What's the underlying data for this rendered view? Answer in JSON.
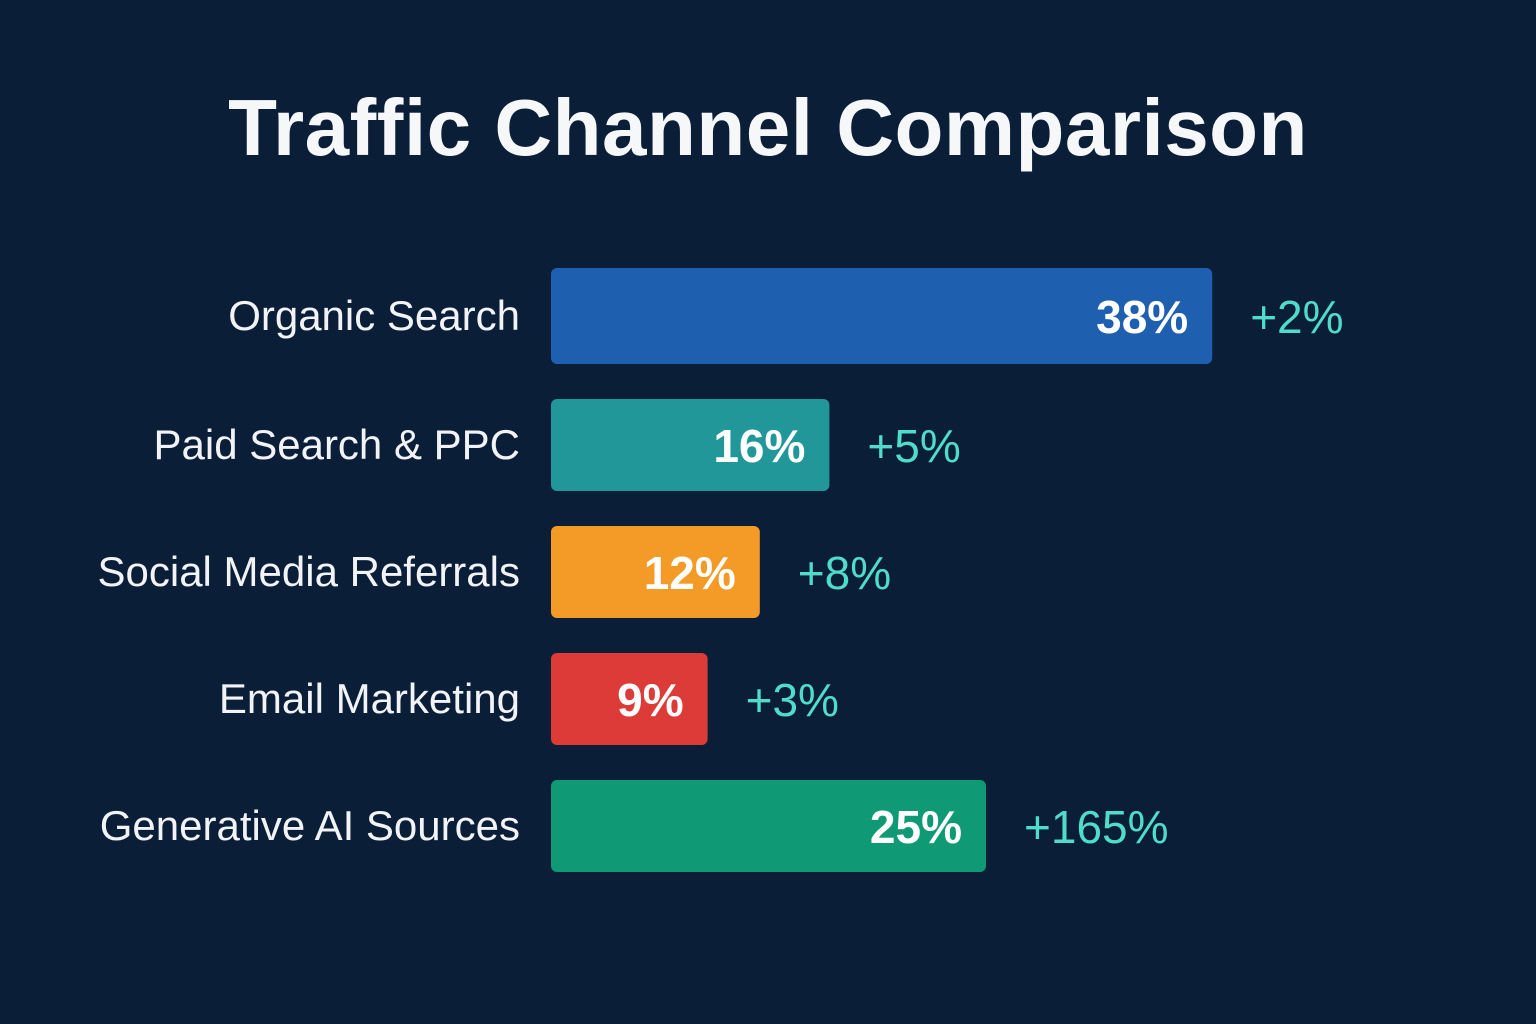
{
  "chart_data": {
    "type": "bar",
    "orientation": "horizontal",
    "title": "Traffic Channel Comparison",
    "xlabel": "",
    "ylabel": "",
    "grid": false,
    "xlim": [
      0,
      38
    ],
    "categories": [
      "Organic Search",
      "Paid Search & PPC",
      "Social Media Referrals",
      "Email Marketing",
      "Generative AI Sources"
    ],
    "values": [
      38,
      16,
      12,
      9,
      25
    ],
    "value_labels": [
      "38%",
      "16%",
      "12%",
      "9%",
      "25%"
    ],
    "change_labels": [
      "+2%",
      "+5%",
      "+8%",
      "+3%",
      "+165%"
    ],
    "bar_colors": [
      "#1f5fb0",
      "#21979a",
      "#f49a27",
      "#dd3b38",
      "#0f9a75"
    ],
    "colors": {
      "background": "#0b1e38",
      "change_text": "#4fdcc8"
    }
  }
}
